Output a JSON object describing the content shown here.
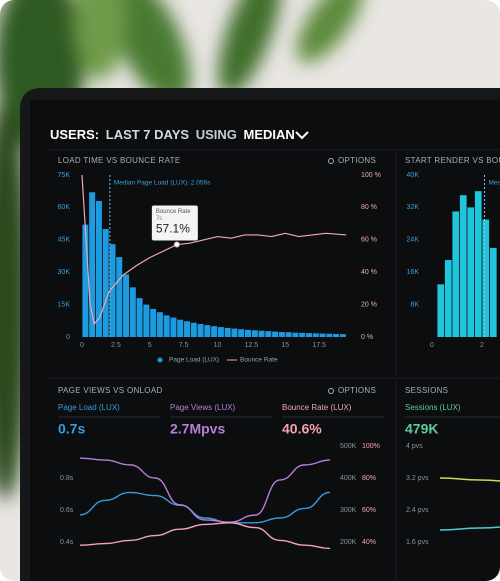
{
  "header": {
    "title_parts": [
      "USERS:",
      "LAST 7 DAYS",
      "USING",
      "MEDIAN"
    ]
  },
  "panels": [
    {
      "title": "LOAD TIME VS BOUNCE RATE",
      "options": "OPTIONS",
      "chart": {
        "type": "histogram",
        "bins": [
          0,
          0.5,
          1,
          1.5,
          2,
          2.5,
          3,
          3.5,
          4,
          4.5,
          5,
          5.5,
          6,
          6.5,
          7,
          7.5,
          8,
          8.5,
          9,
          9.5,
          10,
          10.5,
          11,
          11.5,
          12,
          12.5,
          13,
          13.5,
          14,
          14.5,
          15,
          15.5,
          16,
          16.5,
          17,
          17.5,
          18,
          18.5,
          19,
          19.5
        ],
        "series": [
          {
            "name": "Page Load (LUX)",
            "color": "#1c9be0",
            "values": [
              52000,
              67000,
              63000,
              50000,
              43000,
              37000,
              29000,
              23000,
              18000,
              15000,
              13000,
              11500,
              10000,
              9000,
              8000,
              7300,
              6600,
              6000,
              5500,
              5000,
              4600,
              4200,
              3900,
              3600,
              3300,
              3100,
              2900,
              2700,
              2500,
              2300,
              2200,
              2000,
              1900,
              1800,
              1700,
              1600,
              1500,
              1400,
              1300
            ]
          },
          {
            "name": "Bounce Rate",
            "color": "#f2a7b8",
            "axis": "y2",
            "type": "line",
            "x": [
              0,
              0.3,
              0.6,
              0.9,
              1.3,
              2,
              3,
              4,
              5,
              6,
              7,
              8,
              9,
              10,
              11,
              12,
              13,
              14,
              15,
              16,
              17,
              18,
              19.5
            ],
            "values": [
              100,
              60,
              20,
              8,
              12,
              28,
              38,
              44,
              49,
              53,
              57,
              58,
              60,
              62,
              61,
              63,
              63,
              62,
              64,
              62,
              63,
              64,
              63
            ]
          }
        ],
        "xlim": [
          0,
          20
        ],
        "xticks": [
          0,
          2.5,
          5,
          7.5,
          10,
          12.5,
          15,
          17.5
        ],
        "ylim": [
          0,
          75000
        ],
        "yticks": [
          0,
          {
            "value": 15000,
            "label": "15K"
          },
          {
            "value": 30000,
            "label": "30K"
          },
          {
            "value": 45000,
            "label": "45K"
          },
          {
            "value": 60000,
            "label": "60K"
          },
          {
            "value": 75000,
            "label": "75K"
          }
        ],
        "y2lim": [
          0,
          100
        ],
        "y2ticks": [
          {
            "value": 0,
            "label": "0 %"
          },
          {
            "value": 20,
            "label": "20 %"
          },
          {
            "value": 40,
            "label": "40 %"
          },
          {
            "value": 60,
            "label": "60 %"
          },
          {
            "value": 80,
            "label": "80 %"
          },
          {
            "value": 100,
            "label": "100 %"
          }
        ],
        "median": {
          "value": 2.056,
          "label": "Median Page Load (LUX): 2.056s"
        },
        "tooltip": {
          "title": "Bounce Rate",
          "x": 7,
          "x_label": "7s",
          "value": 57.1,
          "label": "57.1%"
        }
      }
    },
    {
      "title": "START RENDER VS BOUNCE",
      "chart": {
        "type": "histogram",
        "bins": [
          0.2,
          0.5,
          0.8,
          1.1,
          1.4,
          1.7,
          2.0,
          2.3,
          2.6
        ],
        "series": [
          {
            "color": "#22c6dc",
            "values": [
              13000,
              19000,
              31000,
              35000,
              32000,
              36000,
              29000,
              22000
            ]
          }
        ],
        "xlim": [
          0,
          4
        ],
        "xticks": [
          0,
          2
        ],
        "ylim": [
          0,
          40000
        ],
        "yticks": [
          {
            "value": 8000,
            "label": "8K"
          },
          {
            "value": 16000,
            "label": "16K"
          },
          {
            "value": 24000,
            "label": "24K"
          },
          {
            "value": 32000,
            "label": "32K"
          },
          {
            "value": 40000,
            "label": "40K"
          }
        ],
        "median": {
          "value": 2.1,
          "label": "Median"
        }
      }
    },
    {
      "title": "PAGE VIEWS VS ONLOAD",
      "options": "OPTIONS",
      "metrics": [
        {
          "label": "Page Load (LUX)",
          "value": "0.7s",
          "color": "#3a9be0"
        },
        {
          "label": "Page Views (LUX)",
          "value": "2.7Mpvs",
          "color": "#b77fd6"
        },
        {
          "label": "Bounce Rate (LUX)",
          "value": "40.6%",
          "color": "#f4a3b5"
        }
      ],
      "chart": {
        "type": "line",
        "categories": [
          null,
          null,
          null,
          null,
          null,
          null,
          null,
          null,
          null,
          null,
          null
        ],
        "series": [
          {
            "color": "#3a9be0",
            "axis": "y",
            "values": [
              0.57,
              0.66,
              0.71,
              0.69,
              0.63,
              0.55,
              0.52,
              0.52,
              0.55,
              0.61,
              0.71
            ]
          },
          {
            "color": "#b77fd6",
            "axis": "y2",
            "values": [
              462000,
              456000,
              441000,
              400000,
              316000,
              269000,
              262000,
              284000,
              394000,
              441000,
              456000
            ]
          },
          {
            "color": "#f4a3b5",
            "axis": "y3",
            "values": [
              38,
              39,
              41,
              44,
              48,
              51,
              52,
              49,
              41,
              38,
              36
            ]
          }
        ],
        "ylim": [
          0.4,
          1.0
        ],
        "yticks": [
          {
            "value": 0.8,
            "label": "0.8s"
          },
          {
            "value": 0.6,
            "label": "0.6s"
          },
          {
            "value": 0.4,
            "label": "0.4s"
          }
        ],
        "y2lim": [
          200000,
          500000
        ],
        "y2ticks": [
          {
            "value": 500000,
            "label": "500K"
          },
          {
            "value": 400000,
            "label": "400K"
          },
          {
            "value": 300000,
            "label": "300K"
          },
          {
            "value": 200000,
            "label": "200K"
          }
        ],
        "y3lim": [
          40,
          100
        ],
        "y3ticks": [
          {
            "value": 100,
            "label": "100%"
          },
          {
            "value": 80,
            "label": "80%"
          },
          {
            "value": 60,
            "label": "60%"
          },
          {
            "value": 40,
            "label": "40%"
          }
        ]
      }
    },
    {
      "title": "SESSIONS",
      "metrics": [
        {
          "label": "Sessions (LUX)",
          "value": "479K",
          "color": "#5ecb9b"
        }
      ],
      "chart": {
        "type": "line",
        "categories": [
          null,
          null,
          null
        ],
        "series": [
          {
            "color": "#c4dd5a",
            "values": [
              3.2,
              3.15,
              3.1
            ]
          },
          {
            "color": "#4ec9d6",
            "values": [
              1.9,
              1.95,
              2.0
            ]
          }
        ],
        "ylim": [
          1.6,
          4
        ],
        "yticks": [
          {
            "value": 4,
            "label": "4 pvs"
          },
          {
            "value": 3.2,
            "label": "3.2 pvs"
          },
          {
            "value": 2.4,
            "label": "2.4 pvs"
          },
          {
            "value": 1.6,
            "label": "1.6 pvs"
          }
        ]
      }
    }
  ]
}
